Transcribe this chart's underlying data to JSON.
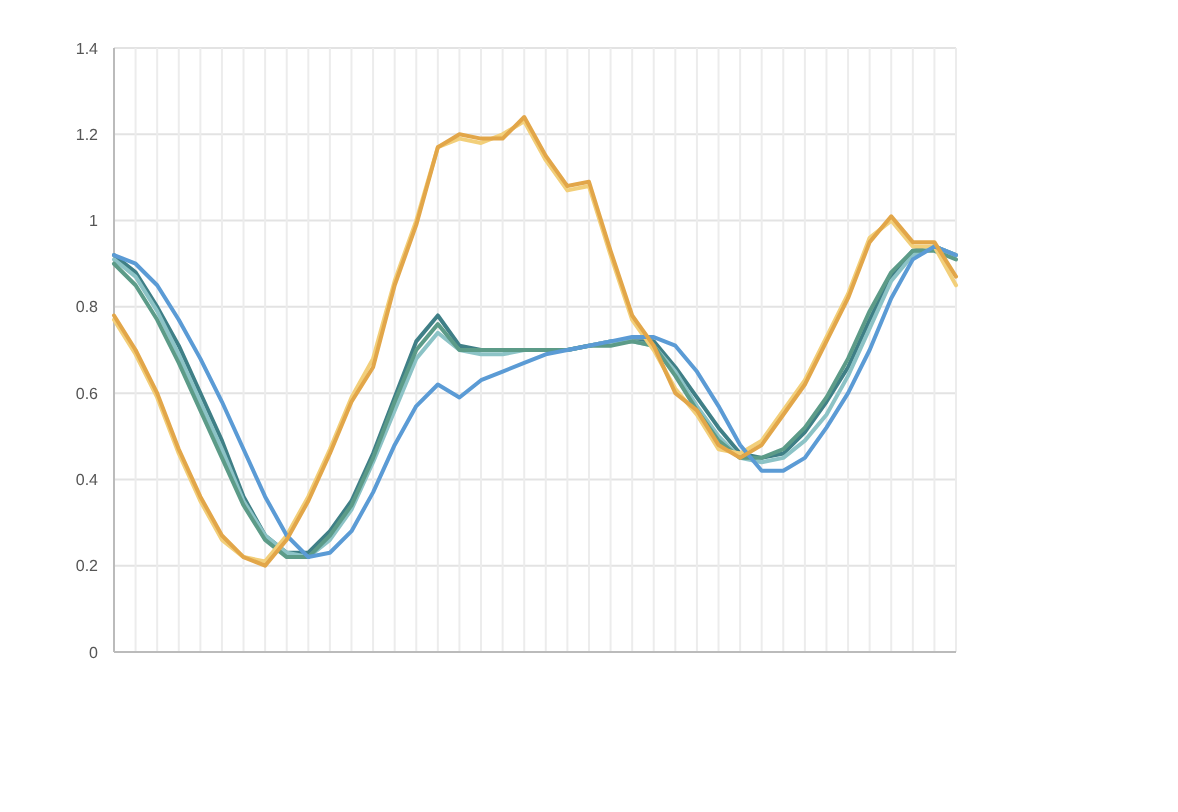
{
  "chart_data": {
    "type": "line",
    "categories": [
      null,
      null,
      null,
      null,
      null,
      null,
      null,
      null,
      null,
      null,
      null,
      null,
      null,
      null,
      null,
      null,
      null,
      null,
      null,
      null,
      null,
      null,
      null,
      null,
      null,
      null,
      null,
      null,
      null,
      null,
      null,
      null,
      null,
      null,
      null,
      null,
      null,
      null,
      null,
      null
    ],
    "series": [
      {
        "color": "#3f7f86",
        "values": [
          0.92,
          0.88,
          0.8,
          0.71,
          0.6,
          0.49,
          0.36,
          0.27,
          0.23,
          0.23,
          0.28,
          0.35,
          0.46,
          0.59,
          0.72,
          0.78,
          0.71,
          0.7,
          0.7,
          0.7,
          0.7,
          0.7,
          0.71,
          0.72,
          0.72,
          0.72,
          0.66,
          0.59,
          0.52,
          0.46,
          0.45,
          0.46,
          0.51,
          0.58,
          0.66,
          0.77,
          0.87,
          0.93,
          0.94,
          0.92
        ]
      },
      {
        "color": "#8cc3c6",
        "values": [
          0.91,
          0.87,
          0.79,
          0.69,
          0.58,
          0.47,
          0.35,
          0.27,
          0.23,
          0.22,
          0.26,
          0.33,
          0.44,
          0.56,
          0.68,
          0.74,
          0.7,
          0.69,
          0.69,
          0.7,
          0.7,
          0.7,
          0.71,
          0.72,
          0.72,
          0.71,
          0.65,
          0.57,
          0.5,
          0.45,
          0.44,
          0.45,
          0.49,
          0.55,
          0.64,
          0.75,
          0.86,
          0.92,
          0.94,
          0.92
        ]
      },
      {
        "color": "#5c9b88",
        "values": [
          0.9,
          0.85,
          0.77,
          0.67,
          0.56,
          0.45,
          0.34,
          0.26,
          0.22,
          0.22,
          0.27,
          0.34,
          0.45,
          0.58,
          0.7,
          0.76,
          0.7,
          0.7,
          0.7,
          0.7,
          0.7,
          0.7,
          0.71,
          0.71,
          0.72,
          0.71,
          0.64,
          0.56,
          0.49,
          0.45,
          0.45,
          0.47,
          0.52,
          0.59,
          0.68,
          0.79,
          0.88,
          0.93,
          0.93,
          0.91
        ]
      },
      {
        "color": "#f2cf7a",
        "values": [
          0.77,
          0.69,
          0.59,
          0.46,
          0.35,
          0.26,
          0.22,
          0.21,
          0.27,
          0.36,
          0.47,
          0.59,
          0.68,
          0.86,
          1.0,
          1.17,
          1.19,
          1.18,
          1.2,
          1.23,
          1.14,
          1.07,
          1.08,
          0.92,
          0.77,
          0.7,
          0.61,
          0.55,
          0.47,
          0.46,
          0.49,
          0.56,
          0.63,
          0.73,
          0.83,
          0.96,
          1.0,
          0.94,
          0.94,
          0.85
        ]
      },
      {
        "color": "#5b9bd5",
        "values": [
          0.92,
          0.9,
          0.85,
          0.77,
          0.68,
          0.58,
          0.47,
          0.36,
          0.27,
          0.22,
          0.23,
          0.28,
          0.37,
          0.48,
          0.57,
          0.62,
          0.59,
          0.63,
          0.65,
          0.67,
          0.69,
          0.7,
          0.71,
          0.72,
          0.73,
          0.73,
          0.71,
          0.65,
          0.57,
          0.48,
          0.42,
          0.42,
          0.45,
          0.52,
          0.6,
          0.7,
          0.82,
          0.91,
          0.94,
          0.92
        ]
      },
      {
        "color": "#e2a649",
        "values": [
          0.78,
          0.7,
          0.6,
          0.47,
          0.36,
          0.27,
          0.22,
          0.2,
          0.26,
          0.35,
          0.46,
          0.58,
          0.66,
          0.85,
          0.99,
          1.17,
          1.2,
          1.19,
          1.19,
          1.24,
          1.15,
          1.08,
          1.09,
          0.93,
          0.78,
          0.71,
          0.6,
          0.56,
          0.48,
          0.45,
          0.48,
          0.55,
          0.62,
          0.72,
          0.82,
          0.95,
          1.01,
          0.95,
          0.95,
          0.87
        ]
      }
    ],
    "ylim": [
      0,
      1.4
    ],
    "yticks": [
      0,
      0.2,
      0.4,
      0.6,
      0.8,
      1,
      1.2,
      1.4
    ],
    "grid": true,
    "marker": "none",
    "line_style": "solid"
  }
}
